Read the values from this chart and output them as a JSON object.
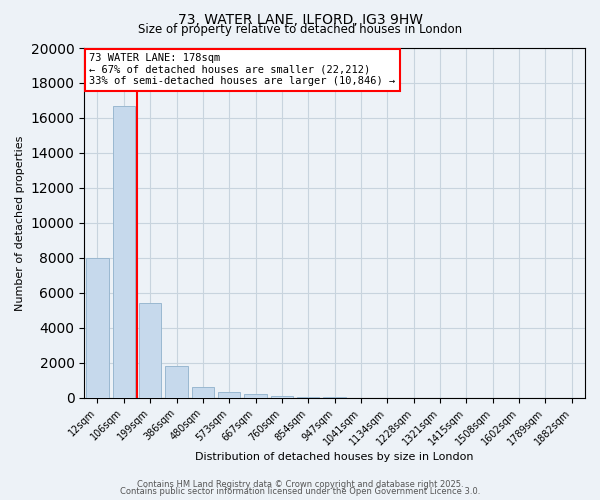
{
  "title_line1": "73, WATER LANE, ILFORD, IG3 9HW",
  "title_line2": "Size of property relative to detached houses in London",
  "xlabel": "Distribution of detached houses by size in London",
  "ylabel": "Number of detached properties",
  "bar_labels": [
    "12sqm",
    "106sqm",
    "199sqm",
    "386sqm",
    "480sqm",
    "573sqm",
    "667sqm",
    "760sqm",
    "854sqm",
    "947sqm",
    "1041sqm",
    "1134sqm",
    "1228sqm",
    "1321sqm",
    "1415sqm",
    "1508sqm",
    "1602sqm",
    "1789sqm",
    "1882sqm"
  ],
  "bar_values": [
    8000,
    16700,
    5400,
    1850,
    650,
    350,
    200,
    130,
    80,
    30,
    10,
    5,
    3,
    2,
    1,
    1,
    0,
    0,
    0
  ],
  "bar_color": "#c6d9ec",
  "bar_edge_color": "#9ab8d0",
  "red_line_x": 1.5,
  "annotation_line1": "73 WATER LANE: 178sqm",
  "annotation_line2": "← 67% of detached houses are smaller (22,212)",
  "annotation_line3": "33% of semi-detached houses are larger (10,846) →",
  "ylim": [
    0,
    20000
  ],
  "yticks": [
    0,
    2000,
    4000,
    6000,
    8000,
    10000,
    12000,
    14000,
    16000,
    18000,
    20000
  ],
  "grid_color": "#c8d4de",
  "background_color": "#edf2f7",
  "footer_line1": "Contains HM Land Registry data © Crown copyright and database right 2025.",
  "footer_line2": "Contains public sector information licensed under the Open Government Licence 3.0."
}
